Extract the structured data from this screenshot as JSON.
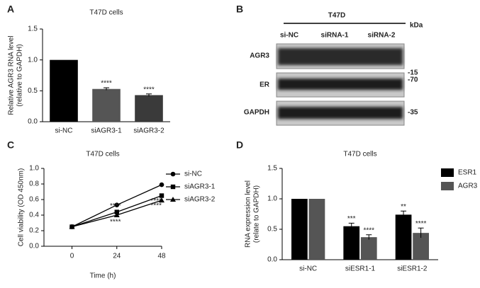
{
  "chart_data": [
    {
      "panel": "A",
      "type": "bar",
      "title": "T47D cells",
      "ylabel": [
        "Relative AGR3 RNA level",
        "(relative to GAPDH)"
      ],
      "categories": [
        "si-NC",
        "siAGR3-1",
        "siAGR3-2"
      ],
      "values": [
        1.0,
        0.53,
        0.43
      ],
      "errors": [
        null,
        0.02,
        0.02
      ],
      "colors": [
        "#000000",
        "#555555",
        "#3a3a3a"
      ],
      "annotations": [
        null,
        "****",
        "****"
      ],
      "ylim": [
        0,
        1.5
      ],
      "yticks": [
        {
          "value": 0,
          "label": "0.0"
        },
        {
          "value": 0.5,
          "label": "0.5"
        },
        {
          "value": 1.0,
          "label": "1.0"
        },
        {
          "value": 1.5,
          "label": "1.5"
        }
      ]
    },
    {
      "panel": "C",
      "type": "line",
      "title": "T47D cells",
      "ylabel": [
        "Cell viability (OD 450nm)"
      ],
      "xlabel": "Time (h)",
      "x": [
        0,
        24,
        48
      ],
      "xlim": [
        -15,
        48
      ],
      "xticks": [
        0,
        24,
        48
      ],
      "series": [
        {
          "name": "si-NC",
          "color": "#000000",
          "marker": "circle",
          "values": [
            0.25,
            0.53,
            0.79
          ],
          "annotations": [
            null,
            null,
            null
          ]
        },
        {
          "name": "siAGR3-1",
          "color": "#000000",
          "marker": "square",
          "values": [
            0.25,
            0.44,
            0.65
          ],
          "annotations": [
            null,
            "****",
            "****"
          ]
        },
        {
          "name": "siAGR3-2",
          "color": "#000000",
          "marker": "triangle",
          "values": [
            0.25,
            0.4,
            0.59
          ],
          "annotations": [
            null,
            "****",
            "****"
          ]
        }
      ],
      "legend": "right",
      "ylim": [
        0,
        1.0
      ],
      "yticks": [
        {
          "value": 0,
          "label": "0.0"
        },
        {
          "value": 0.2,
          "label": "0.2"
        },
        {
          "value": 0.4,
          "label": "0.4"
        },
        {
          "value": 0.6,
          "label": "0.6"
        },
        {
          "value": 0.8,
          "label": "0.8"
        },
        {
          "value": 1.0,
          "label": "1.0"
        }
      ]
    },
    {
      "panel": "D",
      "type": "bar",
      "title": "T47D cells",
      "ylabel": [
        "RNA expression level",
        "(relate to GAPDH)"
      ],
      "categories": [
        "si-NC",
        "siESR1-1",
        "siESR1-2"
      ],
      "series": [
        {
          "name": "ESR1",
          "color": "#000000",
          "values": [
            1.0,
            0.55,
            0.74
          ],
          "errors": [
            null,
            0.05,
            0.06
          ],
          "annotations": [
            null,
            "***",
            "**"
          ]
        },
        {
          "name": "AGR3",
          "color": "#555555",
          "values": [
            1.0,
            0.37,
            0.44
          ],
          "errors": [
            null,
            0.04,
            0.08
          ],
          "annotations": [
            null,
            "****",
            "****"
          ]
        }
      ],
      "legend": "right",
      "ylim": [
        0,
        1.5
      ],
      "yticks": [
        {
          "value": 0,
          "label": "0.0"
        },
        {
          "value": 0.5,
          "label": "0.5"
        },
        {
          "value": 1.0,
          "label": "1.0"
        },
        {
          "value": 1.5,
          "label": "1.5"
        }
      ]
    }
  ],
  "blot": {
    "panel": "B",
    "cell_line": "T47D",
    "unit": "kDa",
    "lanes": [
      "si-NC",
      "siRNA-1",
      "siRNA-2"
    ],
    "rows": [
      {
        "label": "AGR3",
        "marker": "-15"
      },
      {
        "label": "ER",
        "marker": "-70"
      },
      {
        "label": "GAPDH",
        "marker": "-35"
      }
    ]
  }
}
